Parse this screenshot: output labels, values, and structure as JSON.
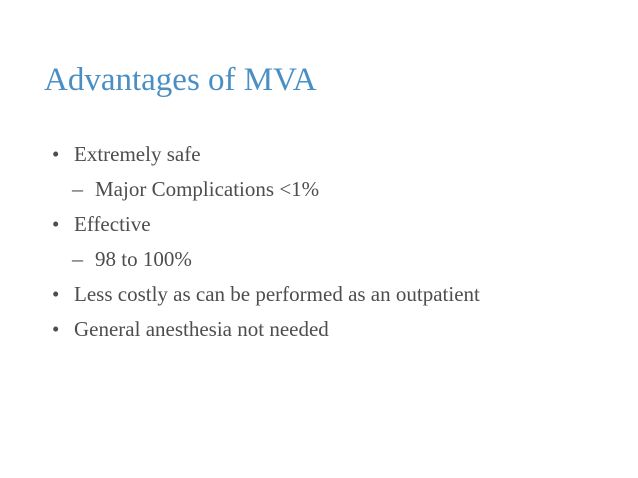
{
  "slide": {
    "title": "Advantages of MVA",
    "colors": {
      "title": "#4a8fc4",
      "body": "#4d4d4d",
      "background": "#ffffff"
    },
    "bullets": [
      {
        "level": 1,
        "marker": "•",
        "text": "Extremely safe"
      },
      {
        "level": 2,
        "marker": "–",
        "text": "Major Complications <1%"
      },
      {
        "level": 1,
        "marker": "•",
        "text": "Effective"
      },
      {
        "level": 2,
        "marker": "–",
        "text": "98 to 100%"
      },
      {
        "level": 1,
        "marker": "•",
        "text": "Less costly as can be performed as an outpatient"
      },
      {
        "level": 1,
        "marker": "•",
        "text": "General anesthesia not needed"
      }
    ]
  }
}
